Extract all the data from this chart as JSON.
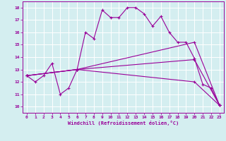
{
  "xlabel": "Windchill (Refroidissement éolien,°C)",
  "bg_color": "#d4eef0",
  "grid_color": "#ffffff",
  "line_color": "#990099",
  "xlim": [
    -0.5,
    23.5
  ],
  "ylim": [
    9.5,
    18.5
  ],
  "xticks": [
    0,
    1,
    2,
    3,
    4,
    5,
    6,
    7,
    8,
    9,
    10,
    11,
    12,
    13,
    14,
    15,
    16,
    17,
    18,
    19,
    20,
    21,
    22,
    23
  ],
  "yticks": [
    10,
    11,
    12,
    13,
    14,
    15,
    16,
    17,
    18
  ],
  "lines": [
    {
      "x": [
        0,
        1,
        2,
        3,
        4,
        5,
        6,
        7,
        8,
        9,
        10,
        11,
        12,
        13,
        14,
        15,
        16,
        17,
        18,
        19,
        20,
        21,
        22,
        23
      ],
      "y": [
        12.5,
        12.0,
        12.5,
        13.5,
        11.0,
        11.5,
        13.0,
        16.0,
        15.5,
        17.8,
        17.2,
        17.2,
        18.0,
        18.0,
        17.5,
        16.5,
        17.3,
        16.0,
        15.2,
        15.2,
        13.9,
        11.8,
        11.5,
        10.1
      ]
    },
    {
      "x": [
        0,
        6,
        20,
        23
      ],
      "y": [
        12.5,
        13.0,
        15.2,
        10.1
      ]
    },
    {
      "x": [
        0,
        6,
        20,
        23
      ],
      "y": [
        12.5,
        13.0,
        13.8,
        10.1
      ]
    },
    {
      "x": [
        0,
        6,
        20,
        23
      ],
      "y": [
        12.5,
        13.0,
        12.0,
        10.1
      ]
    }
  ]
}
